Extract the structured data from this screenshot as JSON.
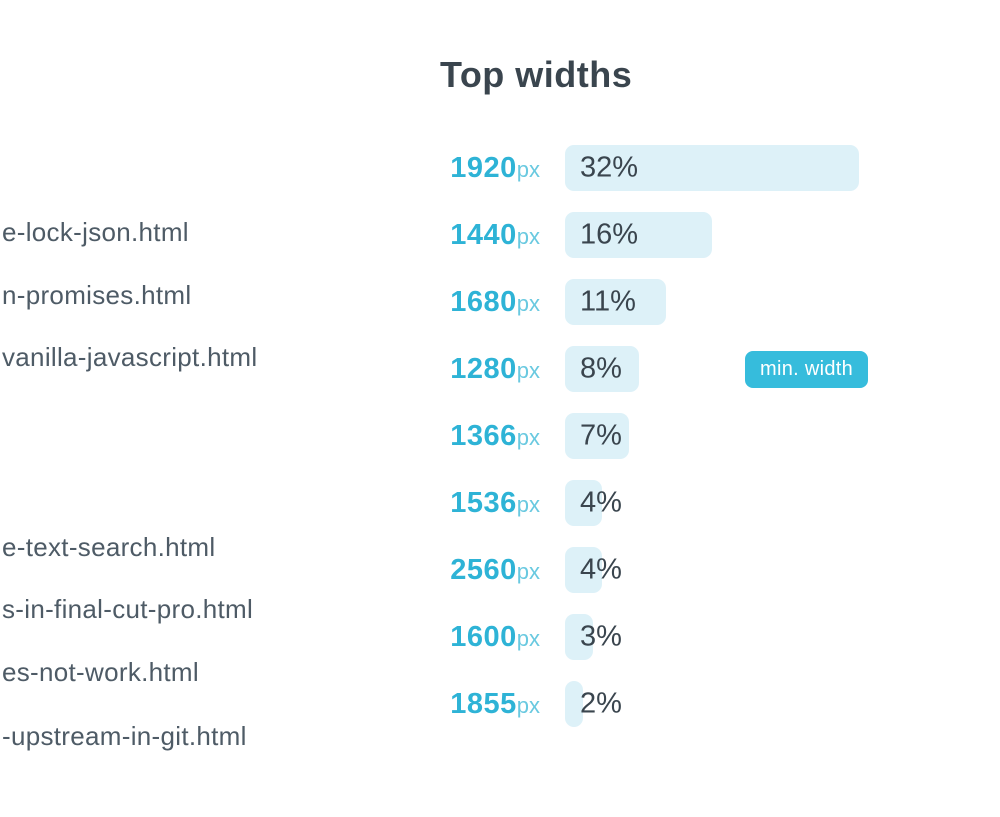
{
  "colors": {
    "accent": "#2eb3d6",
    "accent_light": "#69c9e0",
    "bar_fill": "#ddf1f8",
    "text_dark": "#3a454e",
    "muted_text": "#4e5b66",
    "badge_bg": "#36bcdc",
    "background": "#ffffff"
  },
  "left_list": {
    "items": [
      {
        "label": "e-lock-json.html"
      },
      {
        "label": "n-promises.html"
      },
      {
        "label": "vanilla-javascript.html"
      },
      {
        "label": "e-text-search.html"
      },
      {
        "label": "s-in-final-cut-pro.html"
      },
      {
        "label": "es-not-work.html"
      },
      {
        "label": "-upstream-in-git.html"
      }
    ]
  },
  "chart_data": {
    "type": "bar",
    "orientation": "horizontal",
    "title": "Top widths",
    "categories": [
      "1920px",
      "1440px",
      "1680px",
      "1280px",
      "1366px",
      "1536px",
      "2560px",
      "1600px",
      "1855px"
    ],
    "category_numbers": [
      "1920",
      "1440",
      "1680",
      "1280",
      "1366",
      "1536",
      "2560",
      "1600",
      "1855"
    ],
    "unit": "px",
    "values": [
      32,
      16,
      11,
      8,
      7,
      4,
      4,
      3,
      2
    ],
    "value_labels": [
      "32%",
      "16%",
      "11%",
      "8%",
      "7%",
      "4%",
      "4%",
      "3%",
      "2%"
    ],
    "xlim": [
      0,
      32
    ],
    "grid": false,
    "legend": false,
    "annotation": {
      "text": "min. width",
      "attached_to": "1280px"
    }
  }
}
